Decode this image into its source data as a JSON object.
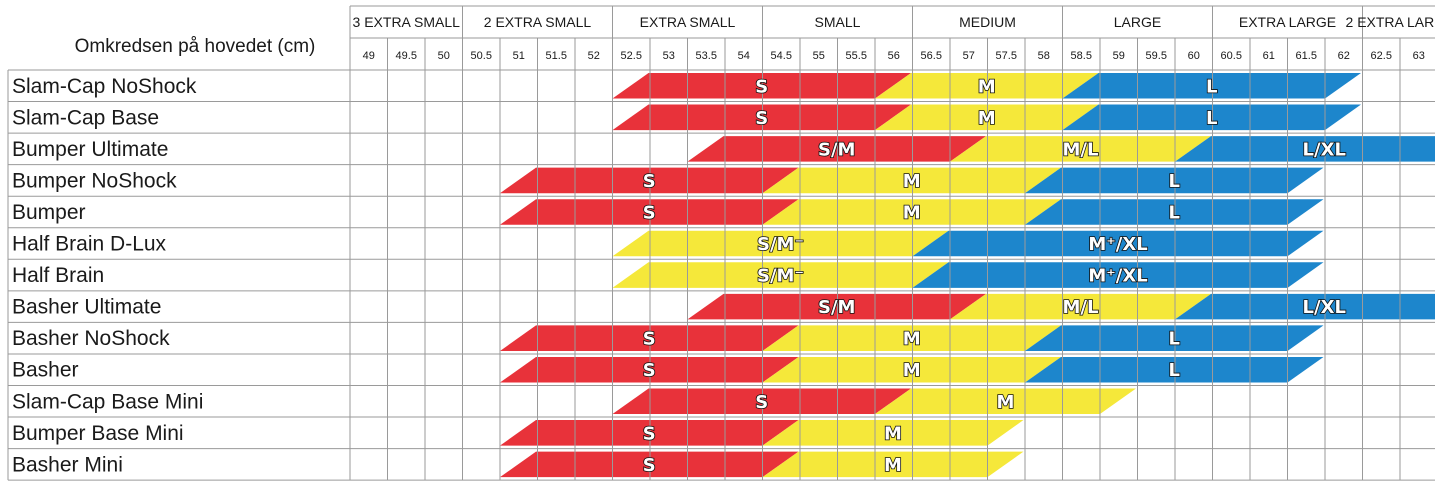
{
  "header_label": "Omkredsen på hovedet (cm)",
  "size_groups": [
    {
      "name": "3 EXTRA SMALL",
      "from": 49,
      "to": 50
    },
    {
      "name": "2 EXTRA SMALL",
      "from": 50.5,
      "to": 52
    },
    {
      "name": "EXTRA SMALL",
      "from": 52.5,
      "to": 54
    },
    {
      "name": "SMALL",
      "from": 54.5,
      "to": 56
    },
    {
      "name": "MEDIUM",
      "from": 56.5,
      "to": 58
    },
    {
      "name": "LARGE",
      "from": 58.5,
      "to": 60
    },
    {
      "name": "EXTRA LARGE",
      "from": 60.5,
      "to": 62
    },
    {
      "name": "2 EXTRA LARGE",
      "from": 62.5,
      "to": 63
    }
  ],
  "circumferences": [
    "49",
    "49.5",
    "50",
    "50.5",
    "51",
    "51.5",
    "52",
    "52.5",
    "53",
    "53.5",
    "54",
    "54.5",
    "55",
    "55.5",
    "56",
    "56.5",
    "57",
    "57.5",
    "58",
    "58.5",
    "59",
    "59.5",
    "60",
    "60.5",
    "61",
    "61.5",
    "62",
    "62.5",
    "63"
  ],
  "colors": {
    "red": "#e8323a",
    "yellow": "#f5e83a",
    "blue": "#1d86cc",
    "grid": "#9a9a9a"
  },
  "products": [
    {
      "name": "Slam-Cap NoShock",
      "bands": [
        {
          "color": "red",
          "label": "S",
          "from": 52.5,
          "to": 56
        },
        {
          "color": "yellow",
          "label": "M",
          "from": 56,
          "to": 58.5
        },
        {
          "color": "blue",
          "label": "L",
          "from": 58.5,
          "to": 62
        }
      ]
    },
    {
      "name": "Slam-Cap Base",
      "bands": [
        {
          "color": "red",
          "label": "S",
          "from": 52.5,
          "to": 56
        },
        {
          "color": "yellow",
          "label": "M",
          "from": 56,
          "to": 58.5
        },
        {
          "color": "blue",
          "label": "L",
          "from": 58.5,
          "to": 62
        }
      ]
    },
    {
      "name": "Bumper Ultimate",
      "bands": [
        {
          "color": "red",
          "label": "S/M",
          "from": 53.5,
          "to": 57
        },
        {
          "color": "yellow",
          "label": "M/L",
          "from": 57,
          "to": 60
        },
        {
          "color": "blue",
          "label": "L/XL",
          "from": 60,
          "to": 63.5
        }
      ]
    },
    {
      "name": "Bumper NoShock",
      "bands": [
        {
          "color": "red",
          "label": "S",
          "from": 51,
          "to": 54.5
        },
        {
          "color": "yellow",
          "label": "M",
          "from": 54.5,
          "to": 58
        },
        {
          "color": "blue",
          "label": "L",
          "from": 58,
          "to": 61.5
        }
      ]
    },
    {
      "name": "Bumper",
      "bands": [
        {
          "color": "red",
          "label": "S",
          "from": 51,
          "to": 54.5
        },
        {
          "color": "yellow",
          "label": "M",
          "from": 54.5,
          "to": 58
        },
        {
          "color": "blue",
          "label": "L",
          "from": 58,
          "to": 61.5
        }
      ]
    },
    {
      "name": "Half Brain D-Lux",
      "bands": [
        {
          "color": "yellow",
          "label": "S/M⁻",
          "from": 52.5,
          "to": 56.5
        },
        {
          "color": "blue",
          "label": "M⁺/XL",
          "from": 56.5,
          "to": 61.5
        }
      ]
    },
    {
      "name": "Half Brain",
      "bands": [
        {
          "color": "yellow",
          "label": "S/M⁻",
          "from": 52.5,
          "to": 56.5
        },
        {
          "color": "blue",
          "label": "M⁺/XL",
          "from": 56.5,
          "to": 61.5
        }
      ]
    },
    {
      "name": "Basher Ultimate",
      "bands": [
        {
          "color": "red",
          "label": "S/M",
          "from": 53.5,
          "to": 57
        },
        {
          "color": "yellow",
          "label": "M/L",
          "from": 57,
          "to": 60
        },
        {
          "color": "blue",
          "label": "L/XL",
          "from": 60,
          "to": 63.5
        }
      ]
    },
    {
      "name": "Basher NoShock",
      "bands": [
        {
          "color": "red",
          "label": "S",
          "from": 51,
          "to": 54.5
        },
        {
          "color": "yellow",
          "label": "M",
          "from": 54.5,
          "to": 58
        },
        {
          "color": "blue",
          "label": "L",
          "from": 58,
          "to": 61.5
        }
      ]
    },
    {
      "name": "Basher",
      "bands": [
        {
          "color": "red",
          "label": "S",
          "from": 51,
          "to": 54.5
        },
        {
          "color": "yellow",
          "label": "M",
          "from": 54.5,
          "to": 58
        },
        {
          "color": "blue",
          "label": "L",
          "from": 58,
          "to": 61.5
        }
      ]
    },
    {
      "name": "Slam-Cap Base Mini",
      "bands": [
        {
          "color": "red",
          "label": "S",
          "from": 52.5,
          "to": 56
        },
        {
          "color": "yellow",
          "label": "M",
          "from": 56,
          "to": 59
        }
      ]
    },
    {
      "name": "Bumper Base Mini",
      "bands": [
        {
          "color": "red",
          "label": "S",
          "from": 51,
          "to": 54.5
        },
        {
          "color": "yellow",
          "label": "M",
          "from": 54.5,
          "to": 57.5
        }
      ]
    },
    {
      "name": "Basher Mini",
      "bands": [
        {
          "color": "red",
          "label": "S",
          "from": 51,
          "to": 54.5
        },
        {
          "color": "yellow",
          "label": "M",
          "from": 54.5,
          "to": 57.5
        }
      ]
    }
  ]
}
